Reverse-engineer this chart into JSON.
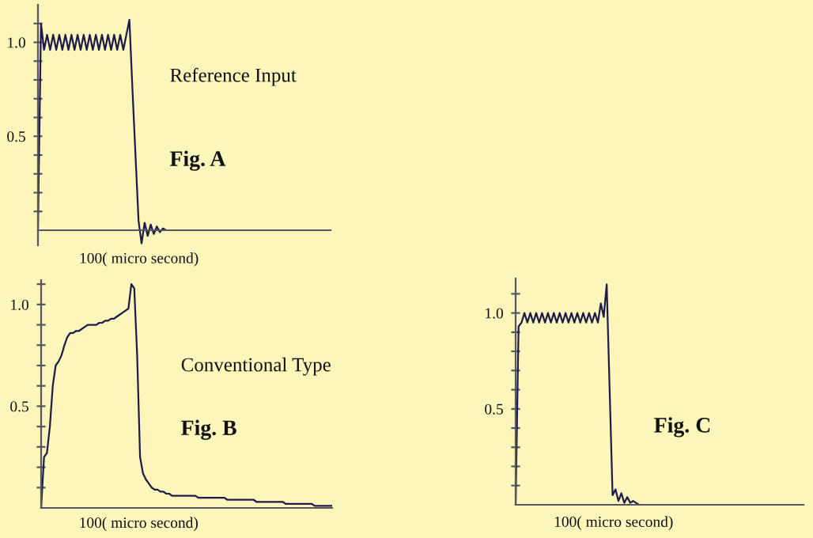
{
  "chart_data": [
    {
      "type": "line",
      "color": "#1c1c4a",
      "annotations": [
        "Reference Input",
        "Fig. A",
        "100( micro second)"
      ],
      "categories": [
        null,
        null,
        null,
        null,
        null,
        null,
        null,
        null,
        null,
        null,
        null,
        null,
        null,
        null,
        null,
        null,
        null,
        null,
        null,
        null,
        null,
        null,
        null,
        null,
        null,
        null,
        null,
        null,
        null,
        null,
        null,
        null,
        null,
        null,
        null,
        null,
        null,
        null,
        null,
        null,
        null,
        null,
        null,
        null,
        null,
        null,
        null,
        null,
        null,
        null,
        null,
        null,
        null,
        null,
        null,
        null,
        null,
        null,
        null,
        null,
        null,
        null,
        null,
        null,
        null,
        null,
        null,
        null,
        null,
        null,
        null,
        null,
        null,
        null,
        null,
        null,
        null,
        null,
        null,
        null,
        null,
        null,
        null,
        null,
        null,
        null,
        null,
        null,
        null,
        null,
        null,
        null,
        null,
        null,
        null,
        null,
        null
      ],
      "values": [
        0,
        1.1,
        0.96,
        1.04,
        0.96,
        1.04,
        0.96,
        1.04,
        0.96,
        1.04,
        0.96,
        1.04,
        0.96,
        1.04,
        0.96,
        1.04,
        0.96,
        1.04,
        0.96,
        1.04,
        0.96,
        1.04,
        0.96,
        1.04,
        0.96,
        1.04,
        0.96,
        1.04,
        0.96,
        1.04,
        1.12,
        0.75,
        0.4,
        0.05,
        -0.07,
        0.04,
        -0.03,
        0.03,
        -0.02,
        0.02,
        -0.01,
        0.01,
        0,
        0,
        0,
        0,
        0,
        0,
        0,
        0,
        0,
        0,
        0,
        0,
        0,
        0,
        0,
        0,
        0,
        0,
        0,
        0,
        0,
        0,
        0,
        0,
        0,
        0,
        0,
        0,
        0,
        0,
        0,
        0,
        0,
        0,
        0,
        0,
        0,
        0,
        0,
        0,
        0,
        0,
        0,
        0,
        0,
        0,
        0,
        0,
        0,
        0,
        0,
        0,
        0,
        0,
        0
      ],
      "ylim": [
        -0.08,
        1.2
      ],
      "yticks": [
        {
          "value": 0.1,
          "label": null
        },
        {
          "value": 0.2,
          "label": null
        },
        {
          "value": 0.3,
          "label": null
        },
        {
          "value": 0.4,
          "label": null
        },
        {
          "value": 0.5,
          "label": "0.5"
        },
        {
          "value": 0.6,
          "label": null
        },
        {
          "value": 0.7,
          "label": null
        },
        {
          "value": 0.8,
          "label": null
        },
        {
          "value": 0.9,
          "label": null
        },
        {
          "value": 1.0,
          "label": "1.0"
        },
        {
          "value": 1.1,
          "label": null
        }
      ]
    },
    {
      "type": "line",
      "color": "#1c1c4a",
      "annotations": [
        "Conventional Type",
        "Fig. B",
        "100( micro second)"
      ],
      "categories": [
        null,
        null,
        null,
        null,
        null,
        null,
        null,
        null,
        null,
        null,
        null,
        null,
        null,
        null,
        null,
        null,
        null,
        null,
        null,
        null,
        null,
        null,
        null,
        null,
        null,
        null,
        null,
        null,
        null,
        null,
        null,
        null,
        null,
        null,
        null,
        null,
        null,
        null,
        null,
        null,
        null,
        null,
        null,
        null,
        null,
        null,
        null,
        null,
        null,
        null,
        null,
        null,
        null,
        null,
        null,
        null,
        null,
        null,
        null,
        null,
        null,
        null,
        null,
        null,
        null,
        null,
        null,
        null,
        null,
        null,
        null,
        null,
        null,
        null,
        null,
        null,
        null,
        null,
        null,
        null,
        null,
        null,
        null,
        null,
        null,
        null,
        null,
        null,
        null,
        null,
        null,
        null,
        null,
        null,
        null,
        null,
        null,
        null,
        null,
        null,
        null
      ],
      "values": [
        0,
        0.25,
        0.27,
        0.4,
        0.6,
        0.7,
        0.72,
        0.75,
        0.8,
        0.84,
        0.86,
        0.86,
        0.87,
        0.87,
        0.88,
        0.89,
        0.9,
        0.9,
        0.9,
        0.9,
        0.91,
        0.91,
        0.92,
        0.92,
        0.93,
        0.93,
        0.94,
        0.95,
        0.96,
        0.97,
        0.98,
        1.1,
        1.08,
        0.75,
        0.25,
        0.17,
        0.14,
        0.12,
        0.1,
        0.09,
        0.09,
        0.08,
        0.08,
        0.07,
        0.07,
        0.06,
        0.06,
        0.06,
        0.06,
        0.06,
        0.06,
        0.06,
        0.06,
        0.06,
        0.05,
        0.05,
        0.05,
        0.05,
        0.05,
        0.05,
        0.05,
        0.05,
        0.05,
        0.05,
        0.04,
        0.04,
        0.04,
        0.04,
        0.04,
        0.04,
        0.04,
        0.04,
        0.04,
        0.04,
        0.03,
        0.03,
        0.03,
        0.03,
        0.03,
        0.03,
        0.03,
        0.03,
        0.03,
        0.03,
        0.02,
        0.02,
        0.02,
        0.02,
        0.02,
        0.02,
        0.02,
        0.02,
        0.02,
        0.02,
        0.01,
        0.01,
        0.01,
        0.01,
        0.01,
        0.01,
        0.01
      ],
      "ylim": [
        0,
        1.12
      ],
      "yticks": [
        {
          "value": 0.1,
          "label": null
        },
        {
          "value": 0.2,
          "label": null
        },
        {
          "value": 0.3,
          "label": null
        },
        {
          "value": 0.4,
          "label": null
        },
        {
          "value": 0.5,
          "label": "0.5"
        },
        {
          "value": 0.6,
          "label": null
        },
        {
          "value": 0.7,
          "label": null
        },
        {
          "value": 0.8,
          "label": null
        },
        {
          "value": 0.9,
          "label": null
        },
        {
          "value": 1.0,
          "label": "1.0"
        },
        {
          "value": 1.1,
          "label": null
        }
      ]
    },
    {
      "type": "line",
      "color": "#1c1c4a",
      "annotations": [
        "Fig. C",
        "100( micro second)"
      ],
      "categories": [
        null,
        null,
        null,
        null,
        null,
        null,
        null,
        null,
        null,
        null,
        null,
        null,
        null,
        null,
        null,
        null,
        null,
        null,
        null,
        null,
        null,
        null,
        null,
        null,
        null,
        null,
        null,
        null,
        null,
        null,
        null,
        null,
        null,
        null,
        null,
        null,
        null,
        null,
        null,
        null,
        null,
        null,
        null,
        null,
        null,
        null,
        null,
        null,
        null,
        null,
        null,
        null,
        null,
        null,
        null,
        null,
        null,
        null,
        null,
        null,
        null,
        null,
        null,
        null,
        null,
        null,
        null,
        null,
        null,
        null,
        null,
        null,
        null,
        null,
        null,
        null,
        null,
        null,
        null,
        null,
        null,
        null,
        null,
        null,
        null,
        null,
        null,
        null,
        null,
        null,
        null,
        null,
        null,
        null,
        null,
        null,
        null,
        null,
        null
      ],
      "values": [
        0,
        0.93,
        0.95,
        1.0,
        0.95,
        1.0,
        0.95,
        1.0,
        0.95,
        1.0,
        0.95,
        1.0,
        0.95,
        1.0,
        0.95,
        1.0,
        0.95,
        1.0,
        0.95,
        1.0,
        0.95,
        1.0,
        0.95,
        1.0,
        0.95,
        1.0,
        0.95,
        1.0,
        0.95,
        1.05,
        0.98,
        1.15,
        0.6,
        0.05,
        0.08,
        0.02,
        0.06,
        0.01,
        0.04,
        0.01,
        0.02,
        0.01,
        0,
        0,
        0,
        0,
        0,
        0,
        0,
        0,
        0,
        0,
        0,
        0,
        0,
        0,
        0,
        0,
        0,
        0,
        0,
        0,
        0,
        0,
        0,
        0,
        0,
        0,
        0,
        0,
        0,
        0,
        0,
        0,
        0,
        0,
        0,
        0,
        0,
        0,
        0,
        0,
        0,
        0,
        0,
        0,
        0,
        0,
        0,
        0,
        0,
        0,
        0,
        0,
        0,
        0,
        0,
        0,
        0
      ],
      "ylim": [
        0,
        1.18
      ],
      "yticks": [
        {
          "value": 0.1,
          "label": null
        },
        {
          "value": 0.2,
          "label": null
        },
        {
          "value": 0.3,
          "label": null
        },
        {
          "value": 0.4,
          "label": null
        },
        {
          "value": 0.5,
          "label": "0.5"
        },
        {
          "value": 0.6,
          "label": null
        },
        {
          "value": 0.7,
          "label": null
        },
        {
          "value": 0.8,
          "label": null
        },
        {
          "value": 0.9,
          "label": null
        },
        {
          "value": 1.0,
          "label": "1.0"
        },
        {
          "value": 1.1,
          "label": null
        }
      ]
    }
  ]
}
